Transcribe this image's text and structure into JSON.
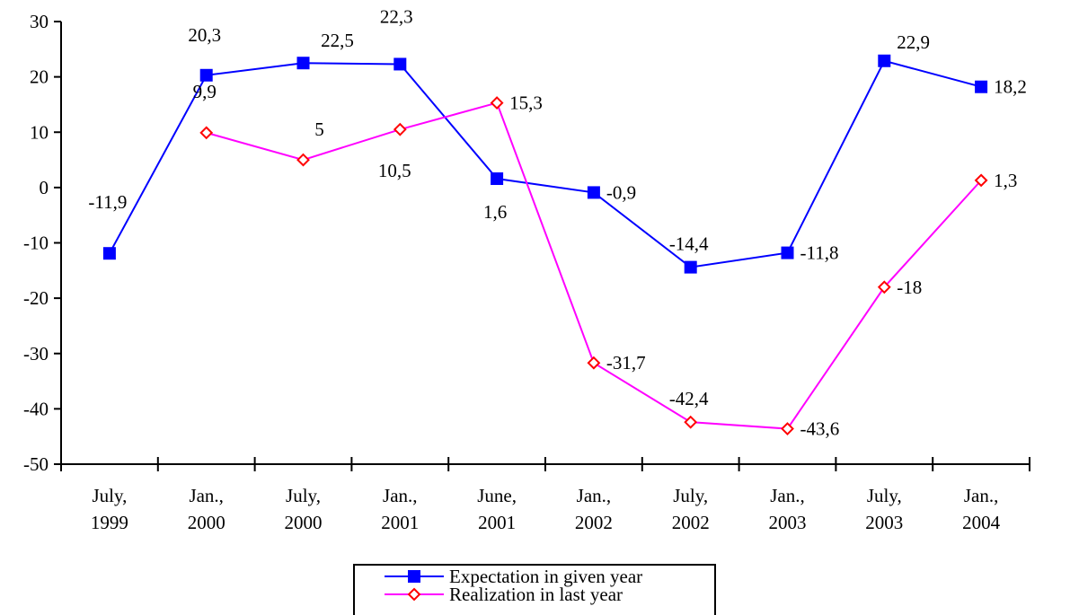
{
  "chart_data": {
    "type": "line",
    "categories": [
      [
        "July,",
        "1999"
      ],
      [
        "Jan.,",
        "2000"
      ],
      [
        "July,",
        "2000"
      ],
      [
        "Jan.,",
        "2001"
      ],
      [
        "June,",
        "2001"
      ],
      [
        "Jan.,",
        "2002"
      ],
      [
        "July,",
        "2002"
      ],
      [
        "Jan.,",
        "2003"
      ],
      [
        "July,",
        "2003"
      ],
      [
        "Jan.,",
        "2004"
      ]
    ],
    "ylim": [
      -50,
      30
    ],
    "yticks": [
      30,
      20,
      10,
      0,
      -10,
      -20,
      -30,
      -40,
      -50
    ],
    "ytick_labels": [
      "30",
      "20",
      "10",
      "0",
      "-10",
      "-20",
      "-30",
      "-40",
      "-50"
    ],
    "grid": false,
    "legend_position": "bottom-center",
    "series": [
      {
        "name": "Expectation in given year",
        "color": "#0000ff",
        "marker": "filled-square",
        "values": [
          -11.9,
          20.3,
          22.5,
          22.3,
          1.6,
          -0.9,
          -14.4,
          -11.8,
          22.9,
          18.2
        ],
        "labels": [
          "-11,9",
          "20,3",
          "22,5",
          "22,3",
          "1,6",
          "-0,9",
          "-14,4",
          "-11,8",
          "22,9",
          "18,2"
        ]
      },
      {
        "name": "Realization in last year",
        "color": "#ff00ff",
        "marker_color": "#ff0000",
        "marker": "hollow-diamond",
        "values": [
          null,
          9.9,
          5,
          10.5,
          15.3,
          -31.7,
          -42.4,
          -43.6,
          -18,
          1.3
        ],
        "labels": [
          null,
          "9,9",
          "5",
          "10,5",
          "15,3",
          "-31,7",
          "-42,4",
          "-43,6",
          "-18",
          "1,3"
        ]
      }
    ]
  }
}
